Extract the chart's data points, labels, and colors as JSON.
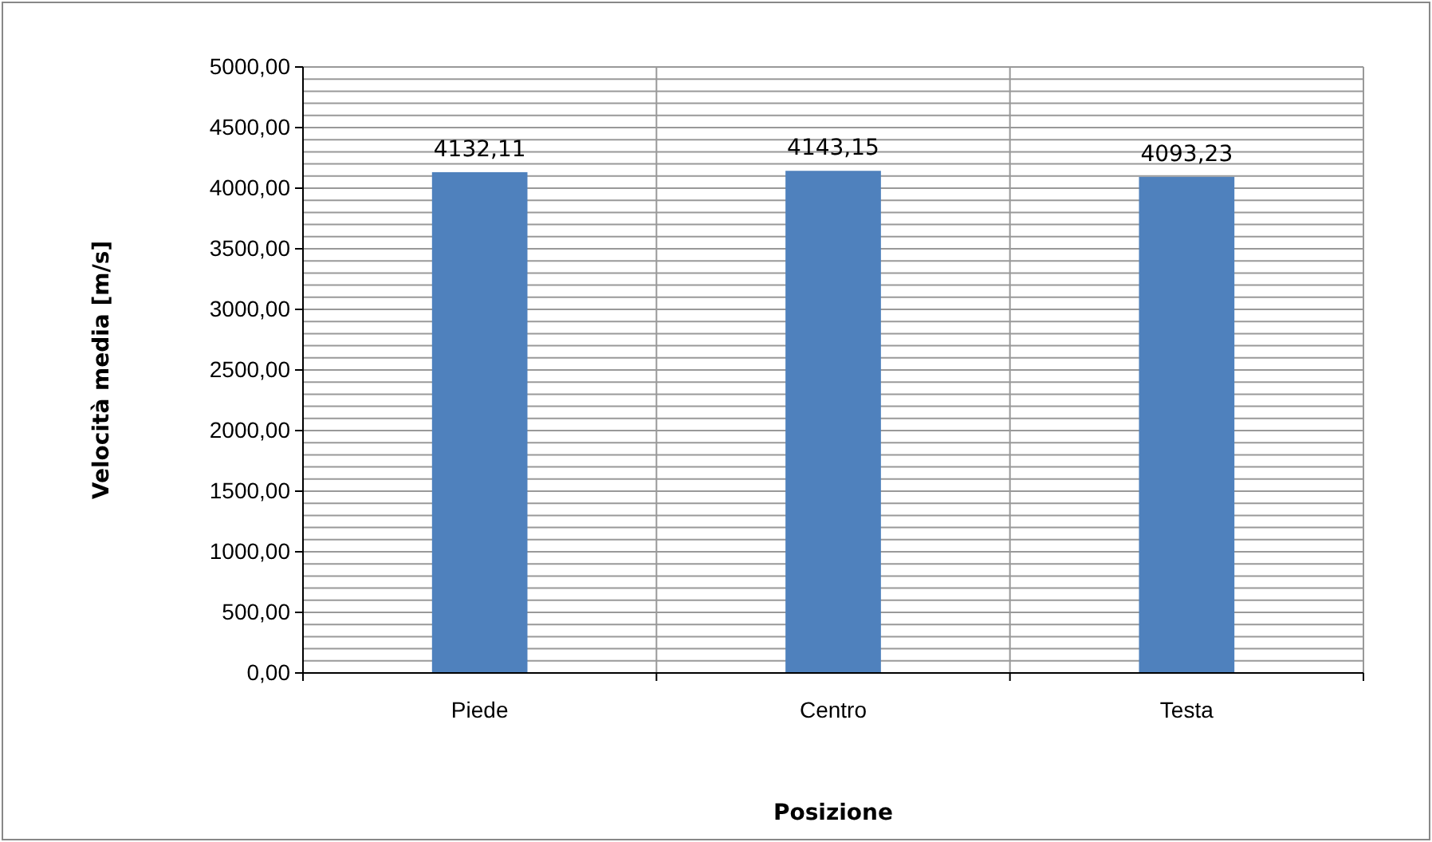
{
  "chart_data": {
    "type": "bar",
    "xlabel": "Posizione",
    "ylabel": "Velocità media [m/s]",
    "categories": [
      "Piede",
      "Centro",
      "Testa"
    ],
    "values": [
      4132.11,
      4143.15,
      4093.23
    ],
    "color": "#4f81bd",
    "value_labels": [
      "4132,11",
      "4143,15",
      "4093,23"
    ],
    "ylim": [
      0,
      5000
    ],
    "yticks": [
      {
        "value": 0,
        "label": "0,00"
      },
      {
        "value": 100,
        "label": null
      },
      {
        "value": 200,
        "label": null
      },
      {
        "value": 300,
        "label": null
      },
      {
        "value": 400,
        "label": null
      },
      {
        "value": 500,
        "label": "500,00"
      },
      {
        "value": 600,
        "label": null
      },
      {
        "value": 700,
        "label": null
      },
      {
        "value": 800,
        "label": null
      },
      {
        "value": 900,
        "label": null
      },
      {
        "value": 1000,
        "label": "1000,00"
      },
      {
        "value": 1100,
        "label": null
      },
      {
        "value": 1200,
        "label": null
      },
      {
        "value": 1300,
        "label": null
      },
      {
        "value": 1400,
        "label": null
      },
      {
        "value": 1500,
        "label": "1500,00"
      },
      {
        "value": 1600,
        "label": null
      },
      {
        "value": 1700,
        "label": null
      },
      {
        "value": 1800,
        "label": null
      },
      {
        "value": 1900,
        "label": null
      },
      {
        "value": 2000,
        "label": "2000,00"
      },
      {
        "value": 2100,
        "label": null
      },
      {
        "value": 2200,
        "label": null
      },
      {
        "value": 2300,
        "label": null
      },
      {
        "value": 2400,
        "label": null
      },
      {
        "value": 2500,
        "label": "2500,00"
      },
      {
        "value": 2600,
        "label": null
      },
      {
        "value": 2700,
        "label": null
      },
      {
        "value": 2800,
        "label": null
      },
      {
        "value": 2900,
        "label": null
      },
      {
        "value": 3000,
        "label": "3000,00"
      },
      {
        "value": 3100,
        "label": null
      },
      {
        "value": 3200,
        "label": null
      },
      {
        "value": 3300,
        "label": null
      },
      {
        "value": 3400,
        "label": null
      },
      {
        "value": 3500,
        "label": "3500,00"
      },
      {
        "value": 3600,
        "label": null
      },
      {
        "value": 3700,
        "label": null
      },
      {
        "value": 3800,
        "label": null
      },
      {
        "value": 3900,
        "label": null
      },
      {
        "value": 4000,
        "label": "4000,00"
      },
      {
        "value": 4100,
        "label": null
      },
      {
        "value": 4200,
        "label": null
      },
      {
        "value": 4300,
        "label": null
      },
      {
        "value": 4400,
        "label": null
      },
      {
        "value": 4500,
        "label": "4500,00"
      },
      {
        "value": 4600,
        "label": null
      },
      {
        "value": 4700,
        "label": null
      },
      {
        "value": 4800,
        "label": null
      },
      {
        "value": 4900,
        "label": null
      },
      {
        "value": 5000,
        "label": "5000,00"
      }
    ],
    "grid": true
  }
}
